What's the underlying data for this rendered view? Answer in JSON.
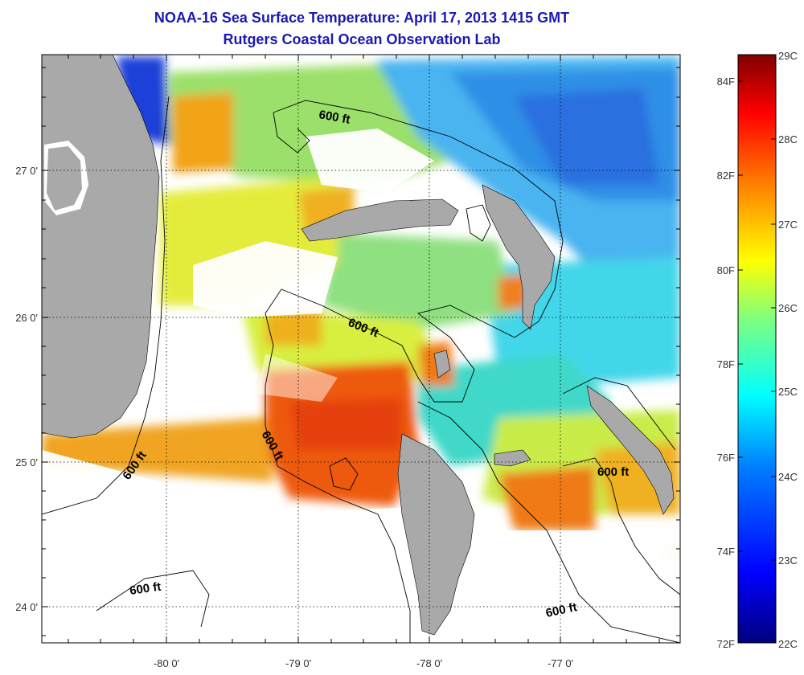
{
  "header": {
    "title": "NOAA-16 Sea Surface Temperature:  April 17, 2013 1415 GMT",
    "subtitle": "Rutgers Coastal Ocean Observation Lab"
  },
  "map": {
    "lon_labels": [
      "-80 0'",
      "-79 0'",
      "-78 0'",
      "-77 0'"
    ],
    "lat_labels": [
      "27 0'",
      "26 0'",
      "25 0'",
      "24 0'"
    ],
    "contour_labels": [
      "600 ft",
      "600 ft",
      "600 ft",
      "600 ft",
      "600 ft",
      "600 ft"
    ],
    "colors": {
      "land": "#a9a9a9",
      "no_data": "#ffffff",
      "contour": "#000000"
    }
  },
  "colorbar": {
    "celsius_labels": [
      "29C",
      "28C",
      "27C",
      "26C",
      "25C",
      "24C",
      "23C",
      "22C"
    ],
    "fahrenheit_labels": [
      "84F",
      "82F",
      "80F",
      "78F",
      "76F",
      "74F",
      "72F"
    ],
    "gradient": [
      "#7f0000",
      "#ff0000",
      "#ff7f00",
      "#ffff00",
      "#7fff7f",
      "#00ffff",
      "#007fff",
      "#0000ff",
      "#00007f"
    ]
  }
}
